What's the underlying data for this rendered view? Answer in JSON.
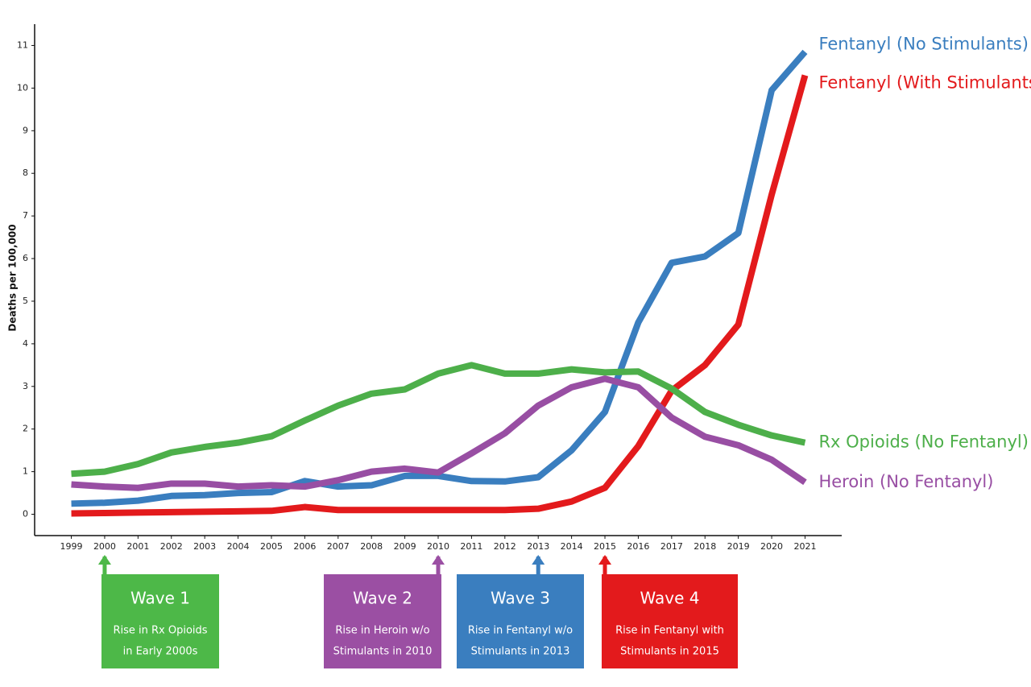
{
  "chart_data": {
    "type": "line",
    "y_label": "Deaths per 100,000",
    "x": [
      1999,
      2000,
      2001,
      2002,
      2003,
      2004,
      2005,
      2006,
      2007,
      2008,
      2009,
      2010,
      2011,
      2012,
      2013,
      2014,
      2015,
      2016,
      2017,
      2018,
      2019,
      2020,
      2021
    ],
    "xlim": [
      1997.9,
      2022.1
    ],
    "xticks": [
      1999,
      2000,
      2001,
      2002,
      2003,
      2004,
      2005,
      2006,
      2007,
      2008,
      2009,
      2010,
      2011,
      2012,
      2013,
      2014,
      2015,
      2016,
      2017,
      2018,
      2019,
      2020,
      2021
    ],
    "ylim": [
      -0.5,
      11.5
    ],
    "yticks": [
      0,
      1,
      2,
      3,
      4,
      5,
      6,
      7,
      8,
      9,
      10,
      11
    ],
    "series": [
      {
        "name": "Fentanyl (No Stimulants)",
        "color": "#3a7ebf",
        "values": [
          0.25,
          0.27,
          0.32,
          0.43,
          0.45,
          0.5,
          0.52,
          0.78,
          0.65,
          0.68,
          0.9,
          0.9,
          0.78,
          0.77,
          0.87,
          1.5,
          2.4,
          4.5,
          5.9,
          6.05,
          6.6,
          9.95,
          10.85
        ]
      },
      {
        "name": "Fentanyl (With Stimulants)",
        "color": "#e31a1c",
        "values": [
          0.02,
          0.03,
          0.04,
          0.05,
          0.06,
          0.07,
          0.08,
          0.17,
          0.1,
          0.1,
          0.1,
          0.1,
          0.1,
          0.1,
          0.13,
          0.3,
          0.62,
          1.6,
          2.9,
          3.5,
          4.45,
          7.5,
          10.3
        ]
      },
      {
        "name": "Rx Opioids (No Fentanyl)",
        "color": "#4daf4a",
        "values": [
          0.95,
          1.0,
          1.18,
          1.45,
          1.58,
          1.68,
          1.83,
          2.2,
          2.55,
          2.83,
          2.93,
          3.3,
          3.5,
          3.3,
          3.3,
          3.4,
          3.33,
          3.35,
          2.95,
          2.4,
          2.1,
          1.85,
          1.68
        ]
      },
      {
        "name": "Heroin (No Fentanyl)",
        "color": "#984ea3",
        "values": [
          0.7,
          0.65,
          0.62,
          0.72,
          0.72,
          0.65,
          0.68,
          0.65,
          0.8,
          1.0,
          1.07,
          0.98,
          1.43,
          1.9,
          2.55,
          2.98,
          3.18,
          2.98,
          2.27,
          1.82,
          1.62,
          1.28,
          0.75
        ]
      }
    ],
    "annotations": [
      {
        "x": 2000,
        "color": "#4db848",
        "title": "Wave 1",
        "lines": [
          "Rise in Rx Opioids",
          "in Early 2000s"
        ]
      },
      {
        "x": 2010,
        "color": "#9b4fa3",
        "title": "Wave 2",
        "lines": [
          "Rise in Heroin w/o",
          "Stimulants in 2010"
        ]
      },
      {
        "x": 2013,
        "color": "#3a7ebf",
        "title": "Wave 3",
        "lines": [
          "Rise in Fentanyl w/o",
          "Stimulants in 2013"
        ]
      },
      {
        "x": 2015,
        "color": "#e31a1c",
        "title": "Wave 4",
        "lines": [
          "Rise in Fentanyl with",
          "Stimulants in 2015"
        ]
      }
    ]
  }
}
